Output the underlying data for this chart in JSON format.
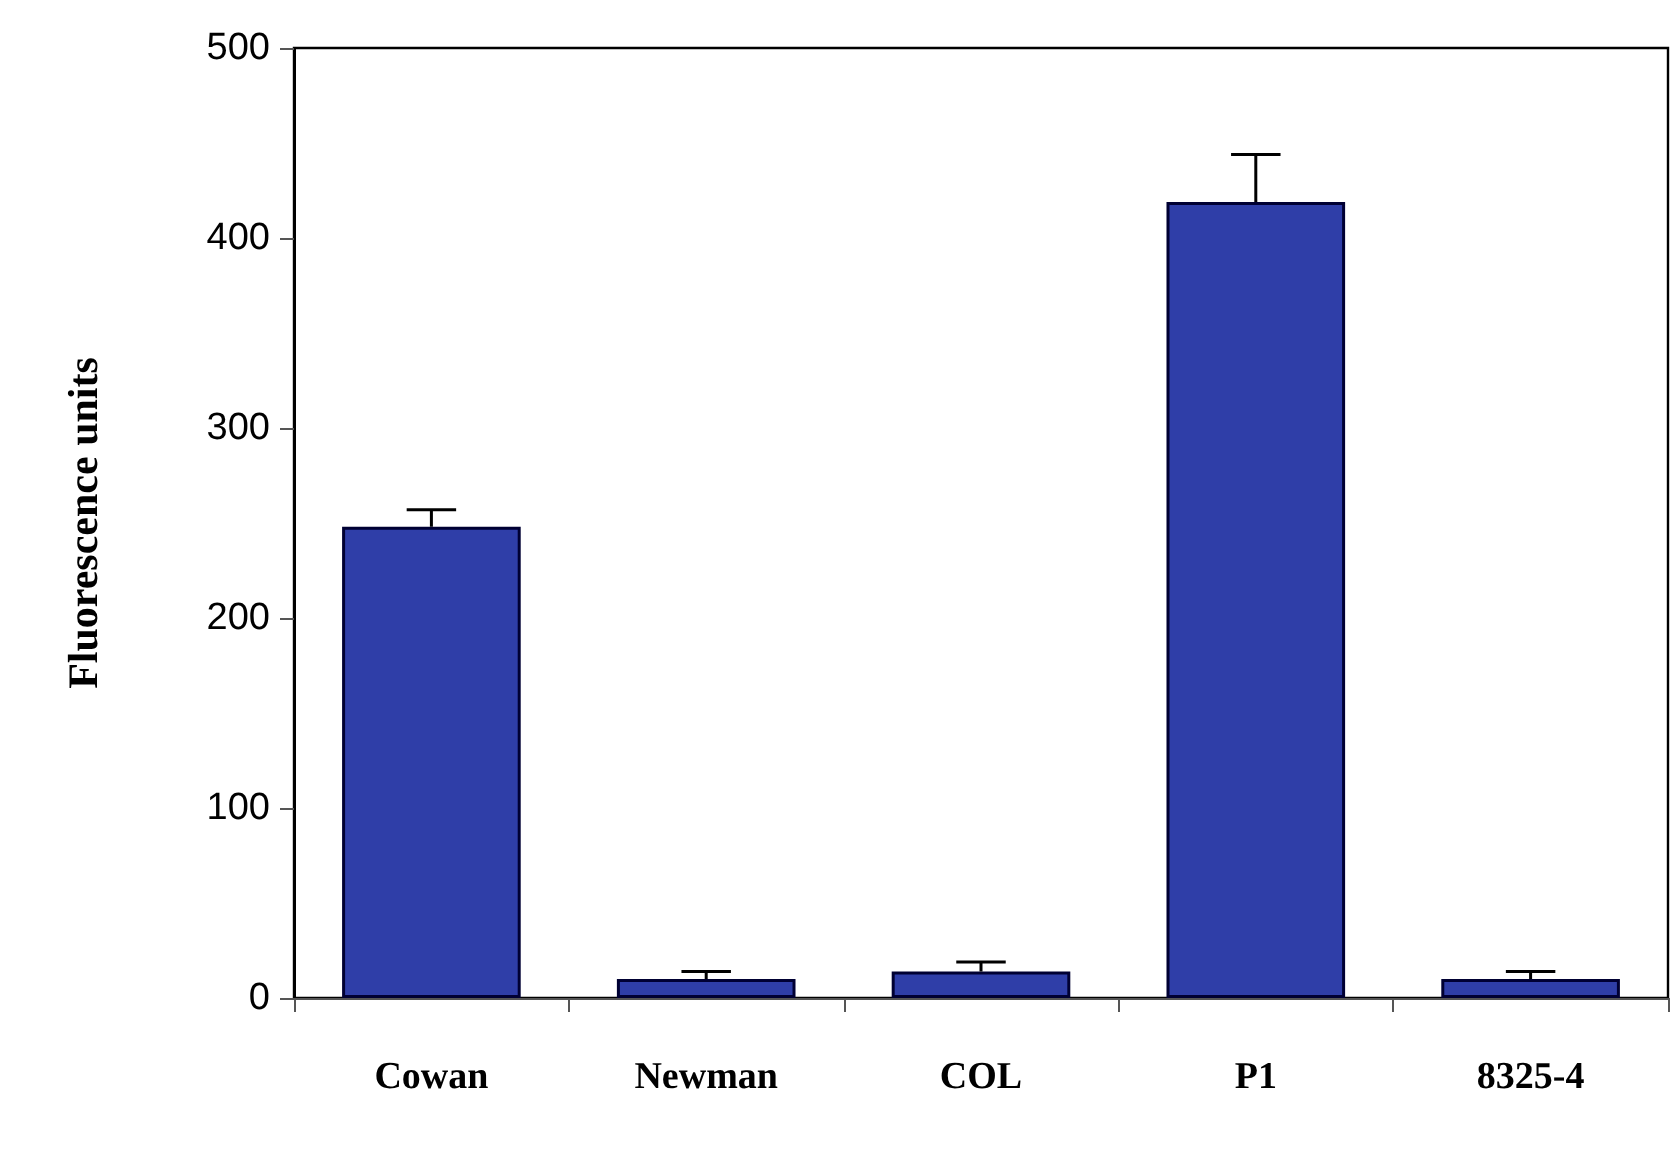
{
  "chart_data": {
    "type": "bar",
    "ylabel": "Fluorescence units",
    "categories": [
      "Cowan",
      "Newman",
      "COL",
      "P1",
      "8325-4"
    ],
    "values": [
      248,
      10,
      14,
      419,
      10
    ],
    "errors": [
      [
        248,
        257
      ],
      [
        10,
        14
      ],
      [
        14,
        19
      ],
      [
        419,
        444
      ],
      [
        10,
        14
      ]
    ],
    "color": "#2f3ea8",
    "ylim": [
      0,
      500
    ],
    "yticks": [
      0,
      100,
      200,
      300,
      400,
      500
    ],
    "grid": false
  }
}
